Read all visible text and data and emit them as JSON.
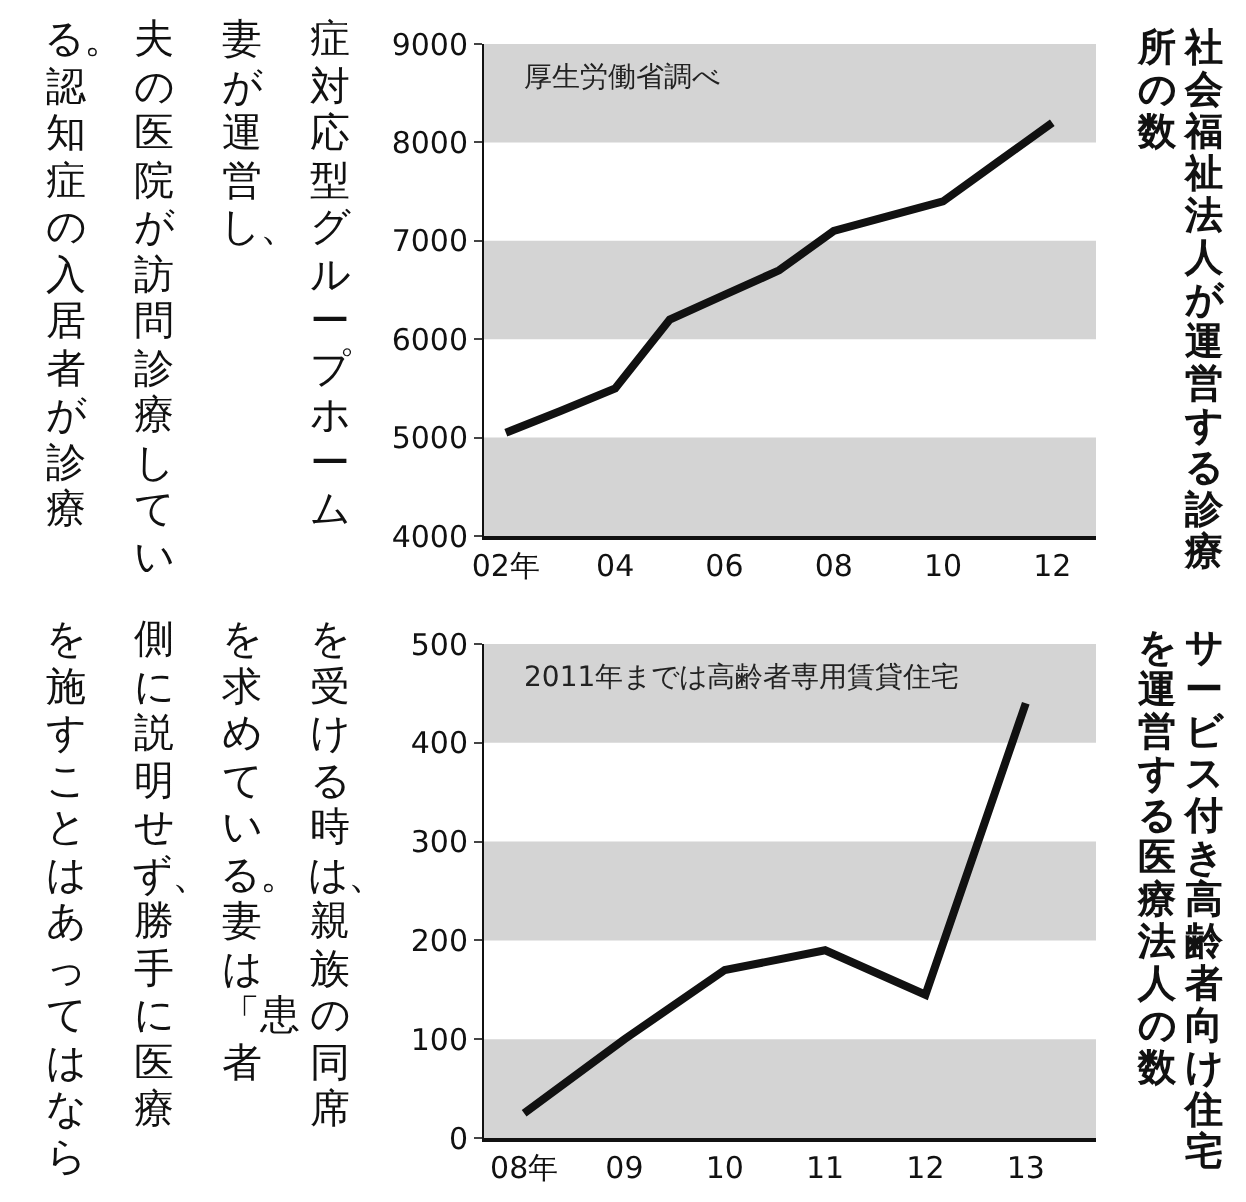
{
  "chart_data": [
    {
      "type": "line",
      "title": "社会福祉法人が運営する診療所の数",
      "annotations": [
        "厚生労働省調べ"
      ],
      "x": [
        2,
        3,
        4,
        5,
        6,
        7,
        8,
        9,
        10,
        11,
        12
      ],
      "series": [
        {
          "color": "#111111",
          "values": [
            5050,
            5270,
            5500,
            6200,
            6450,
            6700,
            7100,
            7250,
            7400,
            7800,
            8200
          ]
        }
      ],
      "xlim": [
        1.6,
        12.8
      ],
      "xticks": [
        {
          "value": 2,
          "label": "02年"
        },
        {
          "value": 4,
          "label": "04"
        },
        {
          "value": 6,
          "label": "06"
        },
        {
          "value": 8,
          "label": "08"
        },
        10,
        12
      ],
      "ylim": [
        4000,
        9000
      ],
      "yticks": [
        4000,
        5000,
        6000,
        7000,
        8000,
        9000
      ],
      "bands": [
        {
          "axis": "y",
          "from": 4000,
          "to": 5000,
          "color": "#d4d4d4"
        },
        {
          "axis": "y",
          "from": 6000,
          "to": 7000,
          "color": "#d4d4d4"
        },
        {
          "axis": "y",
          "from": 8000,
          "to": 9000,
          "color": "#d4d4d4"
        }
      ],
      "line_style": "solid"
    },
    {
      "type": "line",
      "title": "サービス付き高齢者向け住宅を運営する医療法人の数",
      "annotations": [
        "2011年までは高齢者専用賃貸住宅"
      ],
      "x": [
        8,
        9,
        10,
        11,
        12,
        13
      ],
      "series": [
        {
          "color": "#111111",
          "values": [
            25,
            100,
            170,
            190,
            145,
            440
          ]
        }
      ],
      "xlim": [
        7.6,
        13.7
      ],
      "xticks": [
        {
          "value": 8,
          "label": "08年"
        },
        {
          "value": 9,
          "label": "09"
        },
        10,
        11,
        12,
        13
      ],
      "ylim": [
        0,
        500
      ],
      "yticks": [
        0,
        100,
        200,
        300,
        400,
        500
      ],
      "bands": [
        {
          "axis": "y",
          "from": 0,
          "to": 100,
          "color": "#d4d4d4"
        },
        {
          "axis": "y",
          "from": 200,
          "to": 300,
          "color": "#d4d4d4"
        },
        {
          "axis": "y",
          "from": 400,
          "to": 500,
          "color": "#d4d4d4"
        }
      ],
      "line_style": "solid"
    },
    {
      "type": "other",
      "annotations": [
        "症対応型グループホーム",
        "妻が運営し、",
        "夫の医院が訪問診療してい",
        "る。認知症の入居者が診療",
        "を受ける時は、親族の同席",
        "を求めている。妻は「患者",
        "側に説明せず、勝手に医療",
        "を施すことはあってはなら"
      ]
    }
  ]
}
